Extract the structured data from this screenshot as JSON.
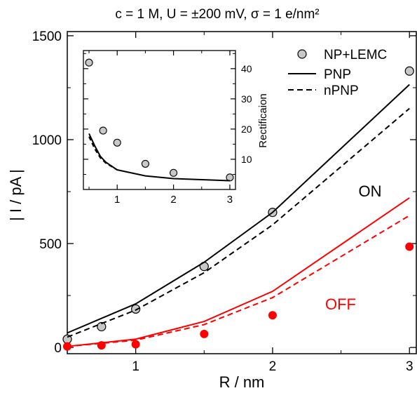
{
  "chart_data": [
    {
      "type": "line",
      "title": "c = 1 M, U = ±200 mV, σ = 1 e/nm²",
      "xlabel": "R / nm",
      "ylabel": "| I / pA |",
      "xlim": [
        0.5,
        3.05
      ],
      "ylim": [
        -30,
        1520
      ],
      "x_ticks": [
        1,
        2,
        3
      ],
      "x_tick_labels": [
        "1",
        "2",
        "3"
      ],
      "y_ticks": [
        0,
        500,
        1000,
        1500
      ],
      "y_tick_labels": [
        "0",
        "500",
        "1000",
        "1500"
      ],
      "grid": false,
      "legend_position": "top-right",
      "legend": [
        {
          "label": "NP+LEMC",
          "marker": "circle"
        },
        {
          "label": "PNP",
          "line": "solid"
        },
        {
          "label": "nPNP",
          "line": "dashed"
        }
      ],
      "annotations": [
        {
          "text": "ON",
          "color": "#000000"
        },
        {
          "text": "OFF",
          "color": "#ff0000"
        }
      ],
      "series": [
        {
          "group": "ON",
          "kind": "NP+LEMC",
          "color": "#000000",
          "marker_fill": "#c8c8c8",
          "x": [
            0.5,
            0.75,
            1.0,
            1.5,
            2.0,
            3.0
          ],
          "y": [
            40,
            100,
            185,
            390,
            650,
            1330
          ]
        },
        {
          "group": "ON",
          "kind": "PNP",
          "color": "#000000",
          "style": "solid",
          "x": [
            0.5,
            1.0,
            1.5,
            2.0,
            3.0
          ],
          "y": [
            70,
            210,
            410,
            650,
            1265
          ]
        },
        {
          "group": "ON",
          "kind": "nPNP",
          "color": "#000000",
          "style": "dashed",
          "x": [
            0.5,
            1.0,
            1.5,
            2.0,
            3.0
          ],
          "y": [
            50,
            180,
            360,
            590,
            1150
          ]
        },
        {
          "group": "OFF",
          "kind": "NP+LEMC",
          "color": "#ff0000",
          "marker_fill": "#ff0000",
          "x": [
            0.5,
            0.75,
            1.0,
            1.5,
            2.0,
            3.0
          ],
          "y": [
            5,
            10,
            15,
            65,
            155,
            485
          ]
        },
        {
          "group": "OFF",
          "kind": "PNP",
          "color": "#ff0000",
          "style": "solid",
          "x": [
            0.5,
            1.0,
            1.5,
            2.0,
            3.0
          ],
          "y": [
            5,
            40,
            125,
            270,
            720
          ]
        },
        {
          "group": "OFF",
          "kind": "nPNP",
          "color": "#ff0000",
          "style": "dashed",
          "x": [
            0.5,
            1.0,
            1.5,
            2.0,
            3.0
          ],
          "y": [
            5,
            35,
            110,
            240,
            635
          ]
        }
      ]
    },
    {
      "type": "line",
      "ylabel": "Rectificaion",
      "xlim": [
        0.4,
        3.1
      ],
      "ylim": [
        0,
        46
      ],
      "x_ticks": [
        1,
        2,
        3
      ],
      "x_tick_labels": [
        "1",
        "2",
        "3"
      ],
      "y_ticks": [
        10,
        20,
        30,
        40
      ],
      "y_tick_labels": [
        "10",
        "20",
        "30",
        "40"
      ],
      "y_axis_side": "right",
      "series": [
        {
          "kind": "NP+LEMC",
          "color": "#000000",
          "marker_fill": "#c8c8c8",
          "x": [
            0.5,
            0.75,
            1.0,
            1.5,
            2.0,
            3.0
          ],
          "y": [
            42,
            19.5,
            15.5,
            8.5,
            5.5,
            4
          ]
        },
        {
          "kind": "PNP",
          "color": "#000000",
          "style": "solid",
          "x": [
            0.5,
            0.6,
            0.7,
            0.8,
            1.0,
            1.5,
            2.0,
            3.0
          ],
          "y": [
            18.5,
            14.5,
            11,
            9,
            6.5,
            4.5,
            3.6,
            2.9
          ]
        },
        {
          "kind": "nPNP",
          "color": "#000000",
          "style": "dashed",
          "x": [
            0.5,
            0.6,
            0.7,
            0.8,
            1.0
          ],
          "y": [
            17.5,
            13.5,
            10.5,
            8.7,
            6.5
          ]
        }
      ]
    }
  ]
}
